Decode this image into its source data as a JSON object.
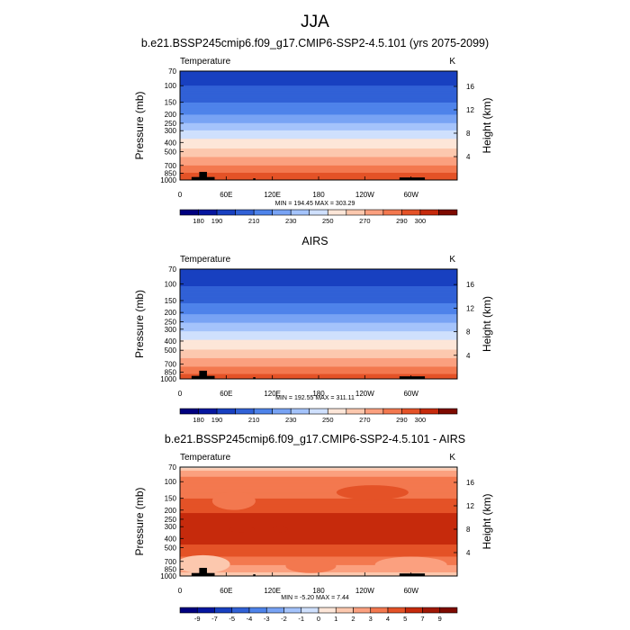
{
  "figure": {
    "main_title": "JJA"
  },
  "chart_data": [
    {
      "type": "contour",
      "title": "b.e21.BSSP245cmip6.f09_g17.CMIP6-SSP2-4.5.101 (yrs 2075-2099)",
      "variable": "Temperature",
      "units": "K",
      "ylabel": "Pressure (mb)",
      "ylabel_right": "Height (km)",
      "x_ticks": [
        "0",
        "60E",
        "120E",
        "180",
        "120W",
        "60W"
      ],
      "x_tick_lon": [
        0,
        60,
        120,
        180,
        240,
        300
      ],
      "xlim": [
        0,
        360
      ],
      "y_ticks": [
        70,
        100,
        150,
        200,
        250,
        300,
        400,
        500,
        700,
        850,
        1000
      ],
      "ylim": [
        70,
        1000
      ],
      "y_scale": "log",
      "height_ticks": [
        16,
        12,
        8,
        4
      ],
      "stats": "MIN = 194.45  MAX = 303.29",
      "min": 194.45,
      "max": 303.29,
      "levels": [
        180,
        190,
        200,
        210,
        220,
        230,
        240,
        250,
        260,
        270,
        280,
        290,
        300
      ],
      "colorbar_labels": [
        "180",
        "190",
        "210",
        "230",
        "250",
        "270",
        "290",
        "300"
      ],
      "colorbar_label_index": [
        0,
        1,
        3,
        5,
        7,
        9,
        11,
        12
      ],
      "colors": [
        "#00007f",
        "#05169f",
        "#1840c0",
        "#3161d6",
        "#4e83ea",
        "#78a3f4",
        "#a4c3fb",
        "#cfe0fd",
        "#fde6d8",
        "#fcc8ae",
        "#fba07f",
        "#f3784f",
        "#e45227",
        "#c62a0c",
        "#7e0a00"
      ],
      "temperature_profile": [
        {
          "p": 70,
          "t": 196
        },
        {
          "p": 100,
          "t": 200
        },
        {
          "p": 150,
          "t": 210
        },
        {
          "p": 200,
          "t": 220
        },
        {
          "p": 250,
          "t": 230
        },
        {
          "p": 300,
          "t": 240
        },
        {
          "p": 400,
          "t": 254
        },
        {
          "p": 500,
          "t": 264
        },
        {
          "p": 700,
          "t": 280
        },
        {
          "p": 850,
          "t": 290
        },
        {
          "p": 1000,
          "t": 298
        }
      ]
    },
    {
      "type": "contour",
      "title": "AIRS",
      "variable": "Temperature",
      "units": "K",
      "ylabel": "Pressure (mb)",
      "ylabel_right": "Height (km)",
      "x_ticks": [
        "0",
        "60E",
        "120E",
        "180",
        "120W",
        "60W"
      ],
      "x_tick_lon": [
        0,
        60,
        120,
        180,
        240,
        300
      ],
      "xlim": [
        0,
        360
      ],
      "y_ticks": [
        70,
        100,
        150,
        200,
        250,
        300,
        400,
        500,
        700,
        850,
        1000
      ],
      "ylim": [
        70,
        1000
      ],
      "y_scale": "log",
      "height_ticks": [
        16,
        12,
        8,
        4
      ],
      "stats": "MIN = 192.55  MAX = 311.11",
      "min": 192.55,
      "max": 311.11,
      "levels": [
        180,
        190,
        200,
        210,
        220,
        230,
        240,
        250,
        260,
        270,
        280,
        290,
        300
      ],
      "colorbar_labels": [
        "180",
        "190",
        "210",
        "230",
        "250",
        "270",
        "290",
        "300"
      ],
      "colorbar_label_index": [
        0,
        1,
        3,
        5,
        7,
        9,
        11,
        12
      ],
      "colors": [
        "#00007f",
        "#05169f",
        "#1840c0",
        "#3161d6",
        "#4e83ea",
        "#78a3f4",
        "#a4c3fb",
        "#cfe0fd",
        "#fde6d8",
        "#fcc8ae",
        "#fba07f",
        "#f3784f",
        "#e45227",
        "#c62a0c",
        "#7e0a00"
      ],
      "temperature_profile": [
        {
          "p": 70,
          "t": 195
        },
        {
          "p": 100,
          "t": 199
        },
        {
          "p": 150,
          "t": 208
        },
        {
          "p": 200,
          "t": 218
        },
        {
          "p": 250,
          "t": 228
        },
        {
          "p": 300,
          "t": 237
        },
        {
          "p": 400,
          "t": 251
        },
        {
          "p": 500,
          "t": 261
        },
        {
          "p": 700,
          "t": 277
        },
        {
          "p": 850,
          "t": 287
        },
        {
          "p": 1000,
          "t": 297
        }
      ]
    },
    {
      "type": "contour",
      "title": "b.e21.BSSP245cmip6.f09_g17.CMIP6-SSP2-4.5.101 - AIRS",
      "variable": "Temperature",
      "units": "K",
      "ylabel": "Pressure (mb)",
      "ylabel_right": "Height (km)",
      "x_ticks": [
        "0",
        "60E",
        "120E",
        "180",
        "120W",
        "60W"
      ],
      "x_tick_lon": [
        0,
        60,
        120,
        180,
        240,
        300
      ],
      "xlim": [
        0,
        360
      ],
      "y_ticks": [
        70,
        100,
        150,
        200,
        250,
        300,
        400,
        500,
        700,
        850,
        1000
      ],
      "ylim": [
        70,
        1000
      ],
      "y_scale": "log",
      "height_ticks": [
        16,
        12,
        8,
        4
      ],
      "stats": "MIN = -5.20  MAX =  7.44",
      "min": -5.2,
      "max": 7.44,
      "levels": [
        -9,
        -7,
        -5,
        -4,
        -3,
        -2,
        -1,
        0,
        1,
        2,
        3,
        4,
        5,
        7,
        9
      ],
      "colorbar_labels": [
        "-9",
        "-7",
        "-5",
        "-4",
        "-3",
        "-2",
        "-1",
        "0",
        "1",
        "2",
        "3",
        "4",
        "5",
        "7",
        "9"
      ],
      "colorbar_label_index": [
        0,
        1,
        2,
        3,
        4,
        5,
        6,
        7,
        8,
        9,
        10,
        11,
        12,
        13,
        14
      ],
      "colors": [
        "#00007f",
        "#05169f",
        "#1840c0",
        "#3161d6",
        "#4e83ea",
        "#78a3f4",
        "#a4c3fb",
        "#cfe0fd",
        "#fde6d8",
        "#fcc8ae",
        "#fba07f",
        "#f3784f",
        "#e45227",
        "#c62a0c",
        "#a01806",
        "#7e0a00"
      ],
      "difference_profile": [
        {
          "p": 70,
          "t": 0.5
        },
        {
          "p": 80,
          "t": 2.5
        },
        {
          "p": 100,
          "t": 3.5
        },
        {
          "p": 130,
          "t": 3.5
        },
        {
          "p": 180,
          "t": 4.5
        },
        {
          "p": 250,
          "t": 5.5
        },
        {
          "p": 400,
          "t": 5.5
        },
        {
          "p": 550,
          "t": 4.5
        },
        {
          "p": 700,
          "t": 3.5
        },
        {
          "p": 850,
          "t": 2.5
        },
        {
          "p": 1000,
          "t": 1.5
        }
      ]
    }
  ]
}
